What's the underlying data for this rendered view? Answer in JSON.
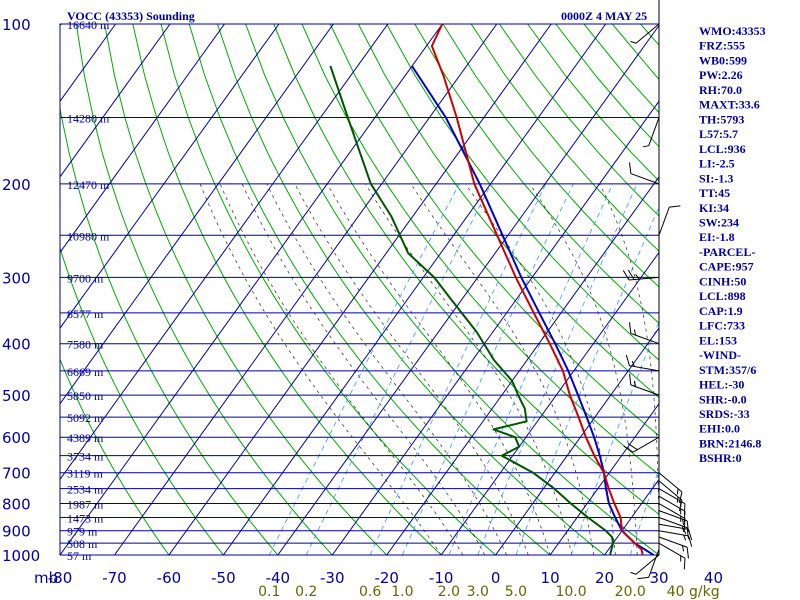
{
  "header": {
    "title": "VOCC (43353) Sounding",
    "valid_time": "0000Z  4 MAY 25"
  },
  "colors": {
    "grid": "#000099",
    "dry_adiabat": "#00aa00",
    "moist_adiabat": "#000000",
    "mixing_ratio": "#3399ff",
    "temperature": "#cc0000",
    "dewpoint": "#005500",
    "parcel": "#0000cc",
    "stats_text": "#000099",
    "mixing_ratio_label": "#666600"
  },
  "chart_data": {
    "type": "skew-t",
    "pressure_unit_label": "mb",
    "pressure_levels": [
      {
        "p": 100,
        "label": "100"
      },
      {
        "p": 200,
        "label": "200"
      },
      {
        "p": 300,
        "label": "300"
      },
      {
        "p": 400,
        "label": "400"
      },
      {
        "p": 500,
        "label": "500"
      },
      {
        "p": 600,
        "label": "600"
      },
      {
        "p": 700,
        "label": "700"
      },
      {
        "p": 800,
        "label": "800"
      },
      {
        "p": 900,
        "label": "900"
      },
      {
        "p": 1000,
        "label": "1000"
      }
    ],
    "height_labels": [
      {
        "p": 100,
        "label": "16640 m"
      },
      {
        "p": 150,
        "label": "14280 m"
      },
      {
        "p": 200,
        "label": "12470 m"
      },
      {
        "p": 250,
        "label": "10980 m"
      },
      {
        "p": 300,
        "label": "9700 m"
      },
      {
        "p": 350,
        "label": "8577 m"
      },
      {
        "p": 400,
        "label": "7580 m"
      },
      {
        "p": 450,
        "label": "6669 m"
      },
      {
        "p": 500,
        "label": "5850 m"
      },
      {
        "p": 550,
        "label": "5092 m"
      },
      {
        "p": 600,
        "label": "4389 m"
      },
      {
        "p": 650,
        "label": "3734 m"
      },
      {
        "p": 700,
        "label": "3119 m"
      },
      {
        "p": 750,
        "label": "2534 m"
      },
      {
        "p": 800,
        "label": "1987 m"
      },
      {
        "p": 850,
        "label": "1473 m"
      },
      {
        "p": 900,
        "label": "979 m"
      },
      {
        "p": 950,
        "label": "508 m"
      },
      {
        "p": 1000,
        "label": "57 m"
      }
    ],
    "temperature_ticks": [
      {
        "t": -80,
        "label": "-80"
      },
      {
        "t": -70,
        "label": "-70"
      },
      {
        "t": -60,
        "label": "-60"
      },
      {
        "t": -50,
        "label": "-50"
      },
      {
        "t": -40,
        "label": "-40"
      },
      {
        "t": -30,
        "label": "-30"
      },
      {
        "t": -20,
        "label": "-20"
      },
      {
        "t": -10,
        "label": "-10"
      },
      {
        "t": 0,
        "label": "0"
      },
      {
        "t": 10,
        "label": "10"
      },
      {
        "t": 20,
        "label": "20"
      },
      {
        "t": 30,
        "label": "30"
      },
      {
        "t": 40,
        "label": "40"
      }
    ],
    "mixing_ratio_ticks": [
      {
        "w": 0.1,
        "label": "0.1"
      },
      {
        "w": 0.2,
        "label": "0.2"
      },
      {
        "w": 0.6,
        "label": "0.6"
      },
      {
        "w": 1.0,
        "label": "1.0"
      },
      {
        "w": 2.0,
        "label": "2.0"
      },
      {
        "w": 3.0,
        "label": "3.0"
      },
      {
        "w": 5.0,
        "label": "5.0"
      },
      {
        "w": 10.0,
        "label": "10.0"
      },
      {
        "w": 20.0,
        "label": "20.0"
      },
      {
        "w": 40.0,
        "label": "40 g/kg"
      }
    ],
    "temperature_profile": [
      {
        "p": 1000,
        "t": 27.0
      },
      {
        "p": 975,
        "t": 26.0
      },
      {
        "p": 950,
        "t": 24.0
      },
      {
        "p": 925,
        "t": 22.0
      },
      {
        "p": 900,
        "t": 20.0
      },
      {
        "p": 850,
        "t": 18.0
      },
      {
        "p": 800,
        "t": 15.0
      },
      {
        "p": 750,
        "t": 12.0
      },
      {
        "p": 700,
        "t": 9.0
      },
      {
        "p": 650,
        "t": 5.0
      },
      {
        "p": 600,
        "t": 1.0
      },
      {
        "p": 550,
        "t": -3.0
      },
      {
        "p": 500,
        "t": -7.5
      },
      {
        "p": 450,
        "t": -12.0
      },
      {
        "p": 400,
        "t": -18.0
      },
      {
        "p": 350,
        "t": -25.0
      },
      {
        "p": 300,
        "t": -33.0
      },
      {
        "p": 250,
        "t": -42.0
      },
      {
        "p": 200,
        "t": -53.0
      },
      {
        "p": 150,
        "t": -65.0
      },
      {
        "p": 125,
        "t": -73.0
      },
      {
        "p": 110,
        "t": -79.0
      },
      {
        "p": 100,
        "t": -80.0
      }
    ],
    "dewpoint_profile": [
      {
        "p": 1000,
        "t": 21.0
      },
      {
        "p": 975,
        "t": 20.5
      },
      {
        "p": 950,
        "t": 20.0
      },
      {
        "p": 925,
        "t": 19.0
      },
      {
        "p": 900,
        "t": 17.0
      },
      {
        "p": 850,
        "t": 12.0
      },
      {
        "p": 800,
        "t": 7.0
      },
      {
        "p": 750,
        "t": 2.0
      },
      {
        "p": 700,
        "t": -4.0
      },
      {
        "p": 650,
        "t": -12.0
      },
      {
        "p": 625,
        "t": -10.0
      },
      {
        "p": 600,
        "t": -12.0
      },
      {
        "p": 580,
        "t": -17.0
      },
      {
        "p": 560,
        "t": -12.0
      },
      {
        "p": 530,
        "t": -14.0
      },
      {
        "p": 500,
        "t": -17.0
      },
      {
        "p": 470,
        "t": -20.0
      },
      {
        "p": 430,
        "t": -26.0
      },
      {
        "p": 380,
        "t": -33.0
      },
      {
        "p": 330,
        "t": -42.0
      },
      {
        "p": 300,
        "t": -48.0
      },
      {
        "p": 270,
        "t": -56.0
      },
      {
        "p": 230,
        "t": -64.0
      },
      {
        "p": 200,
        "t": -72.0
      },
      {
        "p": 150,
        "t": -85.0
      },
      {
        "p": 120,
        "t": -95.0
      }
    ],
    "parcel_profile": [
      {
        "p": 1000,
        "t": 29.0
      },
      {
        "p": 950,
        "t": 24.0
      },
      {
        "p": 900,
        "t": 20.0
      },
      {
        "p": 850,
        "t": 17.0
      },
      {
        "p": 800,
        "t": 14.0
      },
      {
        "p": 750,
        "t": 11.5
      },
      {
        "p": 700,
        "t": 9.0
      },
      {
        "p": 650,
        "t": 6.0
      },
      {
        "p": 600,
        "t": 2.5
      },
      {
        "p": 550,
        "t": -1.5
      },
      {
        "p": 500,
        "t": -6.0
      },
      {
        "p": 450,
        "t": -11.0
      },
      {
        "p": 400,
        "t": -17.0
      },
      {
        "p": 350,
        "t": -24.0
      },
      {
        "p": 300,
        "t": -32.0
      },
      {
        "p": 250,
        "t": -41.0
      },
      {
        "p": 200,
        "t": -52.0
      },
      {
        "p": 150,
        "t": -67.0
      },
      {
        "p": 120,
        "t": -80.0
      }
    ],
    "wind_barbs": [
      {
        "p": 1000,
        "dir": 230,
        "spd": 5
      },
      {
        "p": 975,
        "dir": 200,
        "spd": 10
      },
      {
        "p": 950,
        "dir": 120,
        "spd": 15
      },
      {
        "p": 925,
        "dir": 110,
        "spd": 15
      },
      {
        "p": 900,
        "dir": 100,
        "spd": 15
      },
      {
        "p": 875,
        "dir": 100,
        "spd": 15
      },
      {
        "p": 850,
        "dir": 110,
        "spd": 15
      },
      {
        "p": 825,
        "dir": 110,
        "spd": 15
      },
      {
        "p": 800,
        "dir": 120,
        "spd": 15
      },
      {
        "p": 775,
        "dir": 120,
        "spd": 15
      },
      {
        "p": 750,
        "dir": 120,
        "spd": 15
      },
      {
        "p": 725,
        "dir": 130,
        "spd": 15
      },
      {
        "p": 700,
        "dir": 130,
        "spd": 15
      },
      {
        "p": 600,
        "dir": 240,
        "spd": 20
      },
      {
        "p": 500,
        "dir": 290,
        "spd": 15
      },
      {
        "p": 450,
        "dir": 280,
        "spd": 15
      },
      {
        "p": 400,
        "dir": 290,
        "spd": 15
      },
      {
        "p": 300,
        "dir": 265,
        "spd": 25
      },
      {
        "p": 250,
        "dir": 20,
        "spd": 10
      },
      {
        "p": 200,
        "dir": 290,
        "spd": 10
      },
      {
        "p": 150,
        "dir": 200,
        "spd": 5
      },
      {
        "p": 100,
        "dir": 230,
        "spd": 5
      }
    ],
    "stats": [
      "WMO:43353",
      "FRZ:555",
      "WB0:599",
      "PW:2.26",
      "RH:70.0",
      "MAXT:33.6",
      "TH:5793",
      "L57:5.7",
      "LCL:936",
      "LI:-2.5",
      "SI:-1.3",
      "TT:45",
      "KI:34",
      "SW:234",
      "EI:-1.8",
      "-PARCEL-",
      "CAPE:957",
      "CINH:50",
      "LCL:898",
      "CAP:1.9",
      "LFC:733",
      "EL:153",
      "-WIND-",
      "STM:357/6",
      "HEL:-30",
      "SHR:-0.0",
      "SRDS:-33",
      "EHI:0.0",
      "BRN:2146.8",
      "BSHR:0"
    ]
  }
}
